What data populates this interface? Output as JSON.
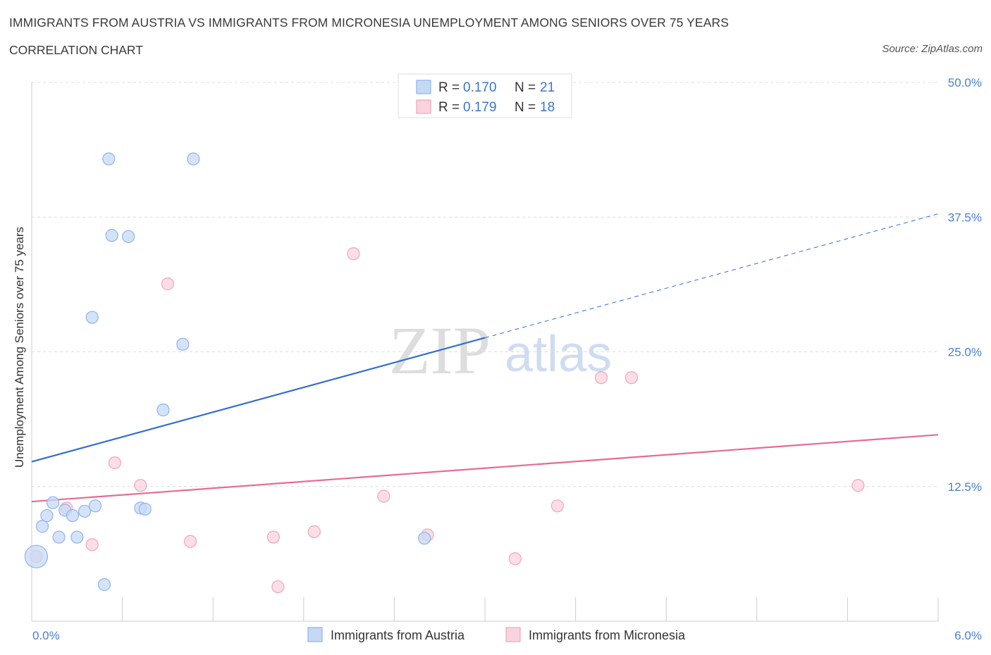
{
  "header": {
    "title": "IMMIGRANTS FROM AUSTRIA VS IMMIGRANTS FROM MICRONESIA UNEMPLOYMENT AMONG SENIORS OVER 75 YEARS",
    "subtitle": "CORRELATION CHART",
    "source": "Source: ZipAtlas.com"
  },
  "watermark": {
    "zip": "ZIP",
    "atlas": "atlas"
  },
  "legend": {
    "rows": [
      {
        "r_label": "R =",
        "r_value": "0.170",
        "n_label": "N =",
        "n_value": "21"
      },
      {
        "r_label": "R =",
        "r_value": "0.179",
        "n_label": "N =",
        "n_value": "18"
      }
    ]
  },
  "chart_data": {
    "type": "scatter",
    "title": "IMMIGRANTS FROM AUSTRIA VS IMMIGRANTS FROM MICRONESIA UNEMPLOYMENT AMONG SENIORS OVER 75 YEARS",
    "xlabel": "",
    "ylabel": "Unemployment Among Seniors over 75 years",
    "xlim": [
      0,
      6
    ],
    "ylim": [
      0,
      50
    ],
    "x_tick_labels": [
      "0.0%",
      "6.0%"
    ],
    "y_ticks": [
      12.5,
      25.0,
      37.5,
      50.0
    ],
    "y_tick_labels": [
      "12.5%",
      "25.0%",
      "37.5%",
      "50.0%"
    ],
    "grid": true,
    "legend_position": "top-center",
    "series": [
      {
        "name": "Immigrants from Austria",
        "color": "#8fb4ea",
        "fill": "#c5d9f5",
        "line_color": "#2f6fd0",
        "points": [
          {
            "x": 0.03,
            "y": 6.0,
            "big": true
          },
          {
            "x": 0.07,
            "y": 8.8
          },
          {
            "x": 0.1,
            "y": 9.8
          },
          {
            "x": 0.14,
            "y": 11.0
          },
          {
            "x": 0.18,
            "y": 7.8
          },
          {
            "x": 0.22,
            "y": 10.3
          },
          {
            "x": 0.27,
            "y": 9.8
          },
          {
            "x": 0.3,
            "y": 7.8
          },
          {
            "x": 0.35,
            "y": 10.2
          },
          {
            "x": 0.42,
            "y": 10.7
          },
          {
            "x": 0.4,
            "y": 28.2
          },
          {
            "x": 0.48,
            "y": 3.4
          },
          {
            "x": 0.51,
            "y": 42.9
          },
          {
            "x": 0.53,
            "y": 35.8
          },
          {
            "x": 0.64,
            "y": 35.7
          },
          {
            "x": 0.72,
            "y": 10.5
          },
          {
            "x": 0.75,
            "y": 10.4
          },
          {
            "x": 0.87,
            "y": 19.6
          },
          {
            "x": 1.0,
            "y": 25.7
          },
          {
            "x": 1.07,
            "y": 42.9
          },
          {
            "x": 2.6,
            "y": 7.7
          }
        ],
        "trend": {
          "x0": 0.0,
          "y0": 14.8,
          "x1": 3.0,
          "y1": 26.3,
          "dashed_to_x": 6.0,
          "dashed_to_y": 37.8
        }
      },
      {
        "name": "Immigrants from Micronesia",
        "color": "#f0a6bb",
        "fill": "#f9d3de",
        "line_color": "#e56b93",
        "points": [
          {
            "x": 0.03,
            "y": 6.0
          },
          {
            "x": 0.23,
            "y": 10.5
          },
          {
            "x": 0.4,
            "y": 7.1
          },
          {
            "x": 0.55,
            "y": 14.7
          },
          {
            "x": 0.72,
            "y": 12.6
          },
          {
            "x": 0.9,
            "y": 31.3
          },
          {
            "x": 1.05,
            "y": 7.4
          },
          {
            "x": 1.6,
            "y": 7.8
          },
          {
            "x": 1.63,
            "y": 3.2
          },
          {
            "x": 1.87,
            "y": 8.3
          },
          {
            "x": 2.13,
            "y": 34.1
          },
          {
            "x": 2.33,
            "y": 11.6
          },
          {
            "x": 2.62,
            "y": 8.0
          },
          {
            "x": 3.2,
            "y": 5.8
          },
          {
            "x": 3.48,
            "y": 10.7
          },
          {
            "x": 3.77,
            "y": 22.6
          },
          {
            "x": 3.97,
            "y": 22.6
          },
          {
            "x": 5.47,
            "y": 12.6
          }
        ],
        "trend": {
          "x0": 0.0,
          "y0": 11.1,
          "x1": 6.0,
          "y1": 17.3
        }
      }
    ]
  }
}
